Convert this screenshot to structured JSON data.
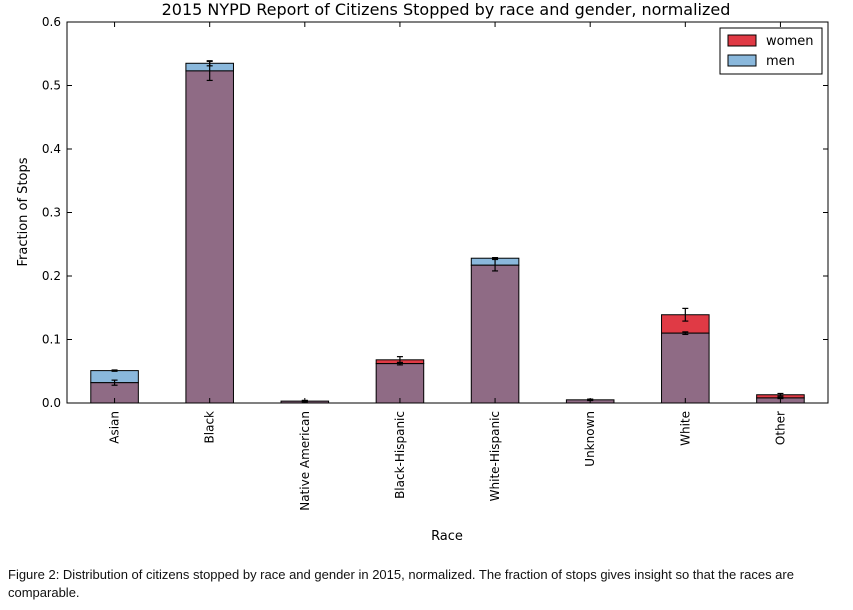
{
  "chart_data": {
    "type": "bar",
    "stacked_overlay": true,
    "title": "2015 NYPD Report of Citizens Stopped by race and gender, normalized",
    "xlabel": "Race",
    "ylabel": "Fraction of Stops",
    "ylim": [
      0,
      0.6
    ],
    "yticks": [
      "0.0",
      "0.1",
      "0.2",
      "0.3",
      "0.4",
      "0.5",
      "0.6"
    ],
    "categories": [
      "Asian",
      "Black",
      "Native American",
      "Black-Hispanic",
      "White-Hispanic",
      "Unknown",
      "White",
      "Other"
    ],
    "series": [
      {
        "name": "women",
        "color": "#e03a45",
        "values": [
          0.032,
          0.523,
          0.003,
          0.068,
          0.217,
          0.005,
          0.139,
          0.013
        ],
        "errors": [
          0.004,
          0.015,
          0.001,
          0.005,
          0.009,
          0.001,
          0.01,
          0.002
        ]
      },
      {
        "name": "men",
        "color": "#8ab8dc",
        "values": [
          0.051,
          0.535,
          0.003,
          0.062,
          0.228,
          0.005,
          0.11,
          0.008
        ],
        "errors": [
          0.001,
          0.004,
          0.001,
          0.002,
          0.001,
          0.001,
          0.002,
          0.001
        ]
      }
    ],
    "overlap_color": "#8f6b85",
    "grid": false,
    "legend": "top-right"
  },
  "caption": "Figure 2: Distribution of citizens stopped by race and gender in 2015, normalized. The fraction of stops gives insight so that the races are comparable."
}
